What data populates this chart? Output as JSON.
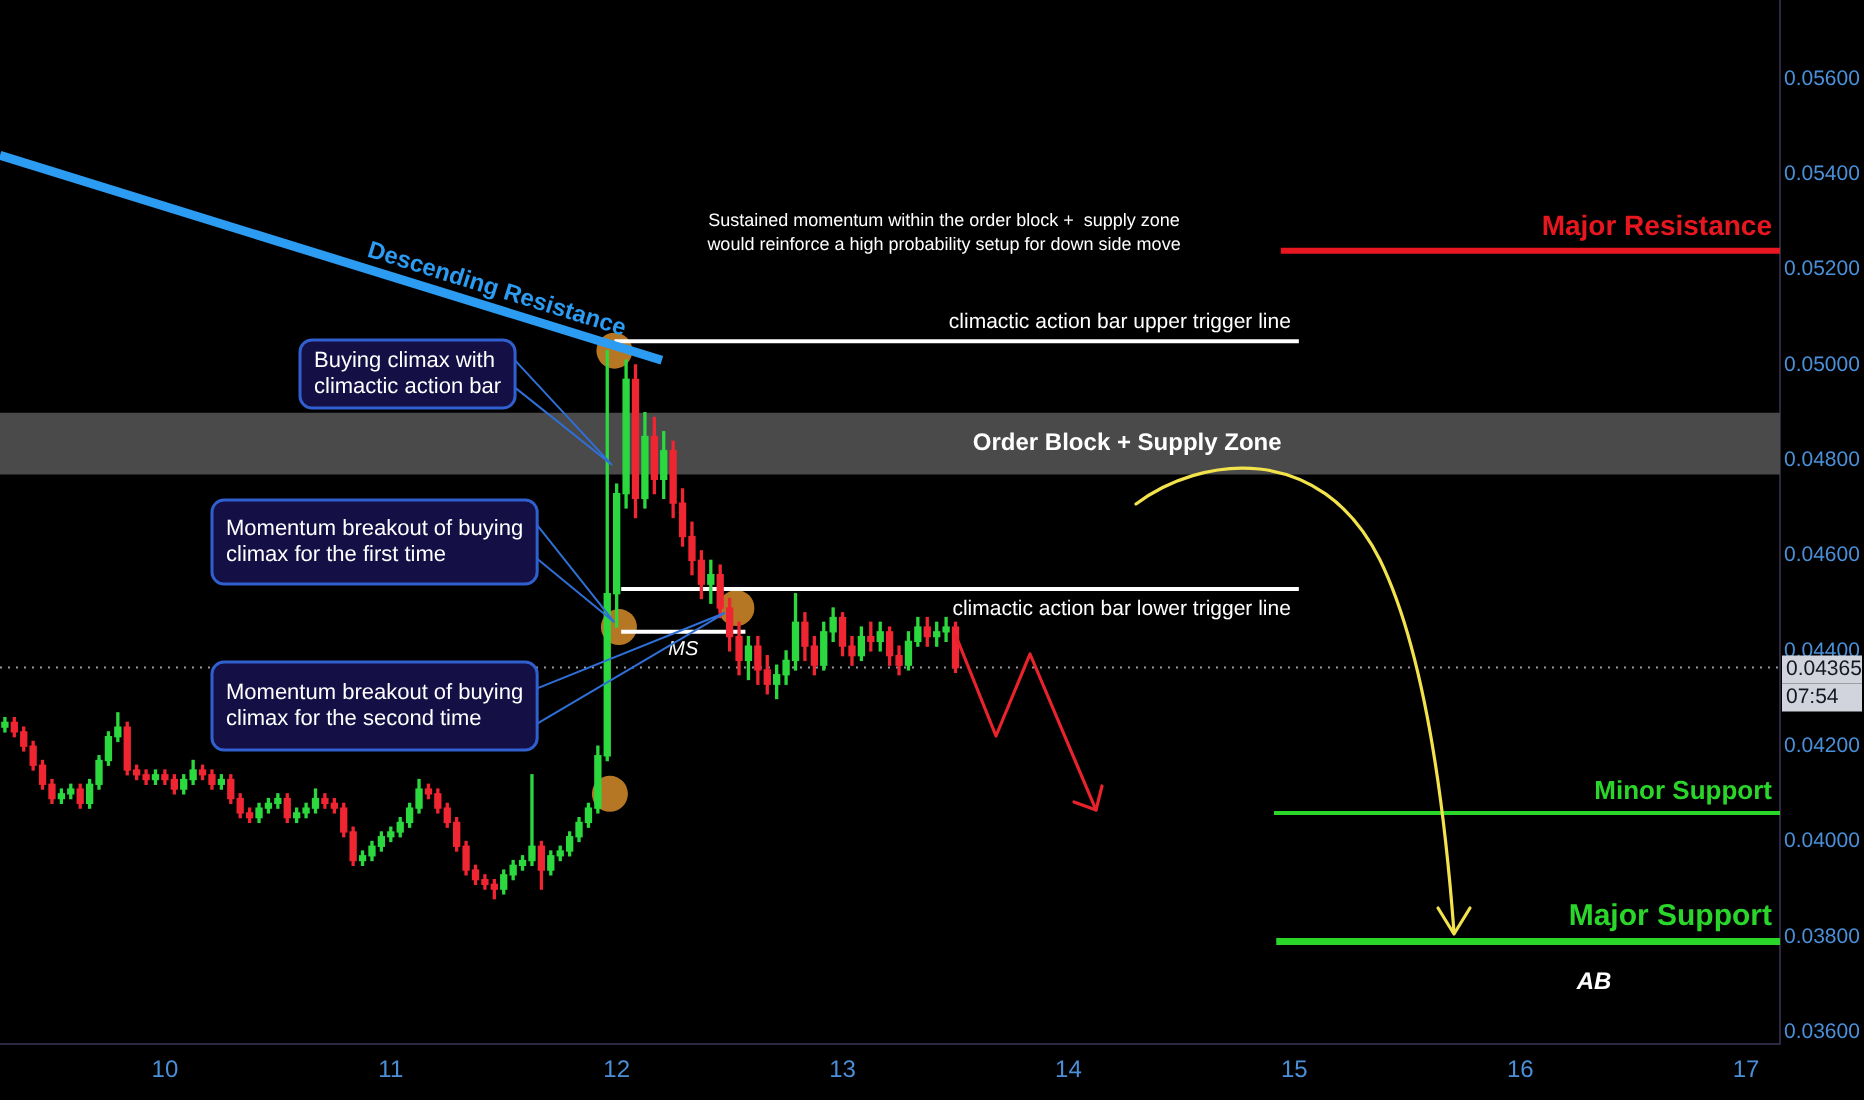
{
  "chart_data": {
    "type": "candlestick",
    "x": [
      9.2917,
      9.3333,
      9.375,
      9.4167,
      9.4583,
      9.5,
      9.5417,
      9.5833,
      9.625,
      9.6667,
      9.7083,
      9.75,
      9.7917,
      9.8333,
      9.875,
      9.9167,
      9.9583,
      10,
      10.0417,
      10.0833,
      10.125,
      10.1667,
      10.2083,
      10.25,
      10.2917,
      10.3333,
      10.375,
      10.4167,
      10.4583,
      10.5,
      10.5417,
      10.5833,
      10.625,
      10.6667,
      10.7083,
      10.75,
      10.7917,
      10.8333,
      10.875,
      10.9167,
      10.9583,
      11,
      11.0417,
      11.0833,
      11.125,
      11.1667,
      11.2083,
      11.25,
      11.2917,
      11.3333,
      11.375,
      11.4167,
      11.4583,
      11.5,
      11.5417,
      11.5833,
      11.625,
      11.6667,
      11.7083,
      11.75,
      11.7917,
      11.8333,
      11.875,
      11.9167,
      11.9583,
      12,
      12.0417,
      12.0833,
      12.125,
      12.1667,
      12.2083,
      12.25,
      12.2917,
      12.3333,
      12.375,
      12.4167,
      12.4583,
      12.5,
      12.5417,
      12.5833,
      12.625,
      12.6667,
      12.7083,
      12.75,
      12.7917,
      12.8333,
      12.875,
      12.9167,
      12.9583,
      13,
      13.0417,
      13.0833,
      13.125,
      13.1667,
      13.2083,
      13.25,
      13.2917,
      13.3333,
      13.375,
      13.4167,
      13.4583,
      13.5
    ],
    "ohlc": [
      [
        0.0424,
        0.0426,
        0.0423,
        0.0425
      ],
      [
        0.0425,
        0.0426,
        0.0422,
        0.0423
      ],
      [
        0.0423,
        0.0424,
        0.0419,
        0.042
      ],
      [
        0.042,
        0.0421,
        0.0415,
        0.0416
      ],
      [
        0.0416,
        0.0417,
        0.0411,
        0.0412
      ],
      [
        0.0412,
        0.0413,
        0.0408,
        0.0409
      ],
      [
        0.0409,
        0.0411,
        0.0408,
        0.041
      ],
      [
        0.041,
        0.0412,
        0.0409,
        0.0411
      ],
      [
        0.0411,
        0.0412,
        0.0407,
        0.0408
      ],
      [
        0.0408,
        0.0413,
        0.0407,
        0.0412
      ],
      [
        0.0412,
        0.0418,
        0.0411,
        0.0417
      ],
      [
        0.0417,
        0.0423,
        0.0416,
        0.0422
      ],
      [
        0.0422,
        0.0427,
        0.0421,
        0.0424
      ],
      [
        0.0424,
        0.0425,
        0.0414,
        0.0415
      ],
      [
        0.0415,
        0.0416,
        0.0413,
        0.0414
      ],
      [
        0.0414,
        0.0415,
        0.0412,
        0.0413
      ],
      [
        0.0413,
        0.0415,
        0.0412,
        0.0414
      ],
      [
        0.0414,
        0.0415,
        0.0412,
        0.0413
      ],
      [
        0.0413,
        0.0414,
        0.041,
        0.0411
      ],
      [
        0.0411,
        0.0414,
        0.041,
        0.0413
      ],
      [
        0.0413,
        0.0417,
        0.0412,
        0.0415
      ],
      [
        0.0415,
        0.0416,
        0.0413,
        0.0414
      ],
      [
        0.0414,
        0.0415,
        0.0411,
        0.0412
      ],
      [
        0.0412,
        0.0414,
        0.0411,
        0.0413
      ],
      [
        0.0413,
        0.0414,
        0.0408,
        0.0409
      ],
      [
        0.0409,
        0.041,
        0.0405,
        0.0406
      ],
      [
        0.0406,
        0.0407,
        0.0404,
        0.0405
      ],
      [
        0.0405,
        0.0408,
        0.0404,
        0.0407
      ],
      [
        0.0407,
        0.0409,
        0.0406,
        0.0408
      ],
      [
        0.0408,
        0.041,
        0.0407,
        0.0409
      ],
      [
        0.0409,
        0.041,
        0.0404,
        0.0405
      ],
      [
        0.0405,
        0.0407,
        0.0404,
        0.0406
      ],
      [
        0.0406,
        0.0408,
        0.0405,
        0.0407
      ],
      [
        0.0407,
        0.0411,
        0.0406,
        0.0409
      ],
      [
        0.0409,
        0.041,
        0.0407,
        0.0408
      ],
      [
        0.0408,
        0.0409,
        0.0406,
        0.0407
      ],
      [
        0.0407,
        0.0408,
        0.0401,
        0.0402
      ],
      [
        0.0402,
        0.0403,
        0.0395,
        0.0396
      ],
      [
        0.0396,
        0.0398,
        0.0395,
        0.0397
      ],
      [
        0.0397,
        0.04,
        0.0396,
        0.0399
      ],
      [
        0.0399,
        0.0402,
        0.0398,
        0.0401
      ],
      [
        0.0401,
        0.0403,
        0.04,
        0.0402
      ],
      [
        0.0402,
        0.0405,
        0.0401,
        0.0404
      ],
      [
        0.0404,
        0.0408,
        0.0403,
        0.0407
      ],
      [
        0.0407,
        0.0413,
        0.0406,
        0.0411
      ],
      [
        0.0411,
        0.0412,
        0.0409,
        0.041
      ],
      [
        0.041,
        0.0411,
        0.0406,
        0.0407
      ],
      [
        0.0407,
        0.0408,
        0.0403,
        0.0404
      ],
      [
        0.0404,
        0.0405,
        0.0398,
        0.0399
      ],
      [
        0.0399,
        0.04,
        0.0393,
        0.0394
      ],
      [
        0.0394,
        0.0395,
        0.0391,
        0.0392
      ],
      [
        0.0392,
        0.0393,
        0.039,
        0.0391
      ],
      [
        0.0391,
        0.0392,
        0.0388,
        0.039
      ],
      [
        0.039,
        0.0394,
        0.0389,
        0.0393
      ],
      [
        0.0393,
        0.0396,
        0.0392,
        0.0395
      ],
      [
        0.0395,
        0.0397,
        0.0394,
        0.0396
      ],
      [
        0.0396,
        0.0414,
        0.0395,
        0.0399
      ],
      [
        0.0399,
        0.04,
        0.039,
        0.0394
      ],
      [
        0.0394,
        0.0398,
        0.0393,
        0.0397
      ],
      [
        0.0397,
        0.0399,
        0.0396,
        0.0398
      ],
      [
        0.0398,
        0.0402,
        0.0397,
        0.0401
      ],
      [
        0.0401,
        0.0405,
        0.04,
        0.0404
      ],
      [
        0.0404,
        0.0408,
        0.0403,
        0.0407
      ],
      [
        0.0407,
        0.042,
        0.0406,
        0.0418
      ],
      [
        0.0418,
        0.0503,
        0.0417,
        0.0452
      ],
      [
        0.0452,
        0.0475,
        0.0445,
        0.0473
      ],
      [
        0.0473,
        0.0501,
        0.047,
        0.0497
      ],
      [
        0.0497,
        0.05,
        0.0468,
        0.0472
      ],
      [
        0.0472,
        0.049,
        0.047,
        0.0485
      ],
      [
        0.0485,
        0.0489,
        0.0473,
        0.0476
      ],
      [
        0.0476,
        0.0486,
        0.0472,
        0.0482
      ],
      [
        0.0482,
        0.0484,
        0.0468,
        0.0471
      ],
      [
        0.0471,
        0.0474,
        0.0462,
        0.0464
      ],
      [
        0.0464,
        0.0467,
        0.0456,
        0.0459
      ],
      [
        0.0459,
        0.0461,
        0.0451,
        0.0454
      ],
      [
        0.0454,
        0.0459,
        0.045,
        0.0456
      ],
      [
        0.0456,
        0.0458,
        0.0447,
        0.0449
      ],
      [
        0.0449,
        0.0451,
        0.044,
        0.0443
      ],
      [
        0.0443,
        0.0446,
        0.0435,
        0.0438
      ],
      [
        0.0438,
        0.0443,
        0.0434,
        0.0441
      ],
      [
        0.0441,
        0.0443,
        0.0433,
        0.0436
      ],
      [
        0.0436,
        0.0439,
        0.0431,
        0.0433
      ],
      [
        0.0433,
        0.0437,
        0.043,
        0.0435
      ],
      [
        0.0435,
        0.044,
        0.0433,
        0.0438
      ],
      [
        0.0438,
        0.0452,
        0.0436,
        0.0446
      ],
      [
        0.0446,
        0.0448,
        0.0438,
        0.0441
      ],
      [
        0.0441,
        0.0443,
        0.0435,
        0.0437
      ],
      [
        0.0437,
        0.0446,
        0.0436,
        0.0444
      ],
      [
        0.0444,
        0.0449,
        0.0442,
        0.0447
      ],
      [
        0.0447,
        0.0448,
        0.0439,
        0.0441
      ],
      [
        0.0441,
        0.0443,
        0.0437,
        0.0439
      ],
      [
        0.0439,
        0.0445,
        0.0438,
        0.0443
      ],
      [
        0.0443,
        0.0446,
        0.044,
        0.0442
      ],
      [
        0.0442,
        0.0446,
        0.044,
        0.0444
      ],
      [
        0.0444,
        0.0445,
        0.0437,
        0.0439
      ],
      [
        0.0439,
        0.0441,
        0.0435,
        0.0437
      ],
      [
        0.0437,
        0.0444,
        0.0436,
        0.0442
      ],
      [
        0.0442,
        0.0447,
        0.0441,
        0.0445
      ],
      [
        0.0445,
        0.0447,
        0.0441,
        0.0443
      ],
      [
        0.0443,
        0.0446,
        0.0441,
        0.0444
      ],
      [
        0.0444,
        0.0447,
        0.0442,
        0.0445
      ],
      [
        0.0445,
        0.0446,
        0.04355,
        0.04365
      ]
    ],
    "colors": [
      "#2bd93f",
      "#ef2531",
      "#ef2531",
      "#ef2531",
      "#ef2531",
      "#ef2531",
      "#2bd93f",
      "#2bd93f",
      "#ef2531",
      "#2bd93f",
      "#2bd93f",
      "#2bd93f",
      "#2bd93f",
      "#ef2531",
      "#ef2531",
      "#ef2531",
      "#2bd93f",
      "#ef2531",
      "#ef2531",
      "#2bd93f",
      "#2bd93f",
      "#ef2531",
      "#ef2531",
      "#2bd93f",
      "#ef2531",
      "#ef2531",
      "#ef2531",
      "#2bd93f",
      "#2bd93f",
      "#2bd93f",
      "#ef2531",
      "#2bd93f",
      "#2bd93f",
      "#2bd93f",
      "#ef2531",
      "#ef2531",
      "#ef2531",
      "#ef2531",
      "#2bd93f",
      "#2bd93f",
      "#2bd93f",
      "#2bd93f",
      "#2bd93f",
      "#2bd93f",
      "#2bd93f",
      "#ef2531",
      "#ef2531",
      "#ef2531",
      "#ef2531",
      "#ef2531",
      "#ef2531",
      "#ef2531",
      "#ef2531",
      "#2bd93f",
      "#2bd93f",
      "#2bd93f",
      "#2bd93f",
      "#ef2531",
      "#2bd93f",
      "#2bd93f",
      "#2bd93f",
      "#2bd93f",
      "#2bd93f",
      "#2bd93f",
      "#2bd93f",
      "#2bd93f",
      "#2bd93f",
      "#ef2531",
      "#2bd93f",
      "#ef2531",
      "#2bd93f",
      "#ef2531",
      "#ef2531",
      "#ef2531",
      "#ef2531",
      "#2bd93f",
      "#ef2531",
      "#ef2531",
      "#ef2531",
      "#2bd93f",
      "#ef2531",
      "#ef2531",
      "#2bd93f",
      "#2bd93f",
      "#2bd93f",
      "#ef2531",
      "#ef2531",
      "#2bd93f",
      "#2bd93f",
      "#ef2531",
      "#ef2531",
      "#2bd93f",
      "#ef2531",
      "#2bd93f",
      "#ef2531",
      "#ef2531",
      "#2bd93f",
      "#2bd93f",
      "#ef2531",
      "#2bd93f",
      "#2bd93f",
      "#ef2531"
    ],
    "series": [
      {
        "type": "line",
        "name": "Descending Resistance",
        "color": "#2b9cf2",
        "x": [
          9.27,
          12.2
        ],
        "values": [
          0.0544,
          0.0501
        ]
      },
      {
        "type": "line",
        "name": "Major Resistance",
        "color": "#e8161f",
        "x": [
          14.94,
          17.15
        ],
        "values": [
          0.0524,
          0.0524
        ]
      },
      {
        "type": "line",
        "name": "climactic action bar upper trigger line",
        "color": "#ffffff",
        "x": [
          11.99,
          15.02
        ],
        "values": [
          0.0505,
          0.0505
        ]
      },
      {
        "type": "line",
        "name": "climactic action bar lower trigger line",
        "color": "#ffffff",
        "x": [
          12.02,
          15.02
        ],
        "values": [
          0.0453,
          0.0453
        ]
      },
      {
        "type": "line",
        "name": "MS",
        "color": "#ffffff",
        "x": [
          12.02,
          12.57
        ],
        "values": [
          0.0444,
          0.0444
        ]
      },
      {
        "type": "line",
        "name": "Minor Support",
        "color": "#2bd62b",
        "x": [
          14.91,
          17.15
        ],
        "values": [
          0.0406,
          0.0406
        ]
      },
      {
        "type": "line",
        "name": "Major Support",
        "color": "#2bd62b",
        "x": [
          14.92,
          17.15
        ],
        "values": [
          0.0379,
          0.0379
        ]
      },
      {
        "type": "scatter",
        "color": "#e8982e",
        "marker": "circle",
        "x": [
          11.97,
          11.99,
          12.01,
          12.53
        ],
        "values": [
          0.041,
          0.0503,
          0.0445,
          0.0449
        ]
      }
    ],
    "xlim": [
      9.27,
      17.15
    ],
    "xticks": [
      10,
      11,
      12,
      13,
      14,
      15,
      16,
      17
    ],
    "ylim": [
      0.03575,
      0.05766
    ],
    "yticks": [
      {
        "value": 0.036,
        "label": "0.03600"
      },
      {
        "value": 0.038,
        "label": "0.03800"
      },
      {
        "value": 0.04,
        "label": "0.04000"
      },
      {
        "value": 0.042,
        "label": "0.04200"
      },
      {
        "value": 0.044,
        "label": "0.04400"
      },
      {
        "value": 0.046,
        "label": "0.04600"
      },
      {
        "value": 0.048,
        "label": "0.04800"
      },
      {
        "value": 0.05,
        "label": "0.05000"
      },
      {
        "value": 0.052,
        "label": "0.05200"
      },
      {
        "value": 0.054,
        "label": "0.05400"
      },
      {
        "value": 0.056,
        "label": "0.05600"
      }
    ],
    "bands": [
      {
        "axis": "y",
        "from": 0.0477,
        "to": 0.049,
        "label": "Order Block + Supply Zone",
        "color": "#4a4a4a"
      }
    ],
    "ref_lines": [
      {
        "axis": "y",
        "value": 0.04365,
        "label": "0.04365",
        "line_style": "dotted",
        "color": "#9598a1"
      }
    ],
    "annotations": [
      {
        "text": "Buying climax with\nclimactic action bar",
        "x": 11.98,
        "y": 0.0479
      },
      {
        "text": "Momentum breakout of buying\nclimax for the first time",
        "x": 11.99,
        "y": 0.0446
      },
      {
        "text": "Momentum breakout of buying\nclimax for the second time",
        "x": 12.48,
        "y": 0.0448
      },
      "Sustained momentum within the order block +  supply zone\nwould reinforce a high probability setup for down side move",
      "AB",
      "07:54"
    ]
  }
}
